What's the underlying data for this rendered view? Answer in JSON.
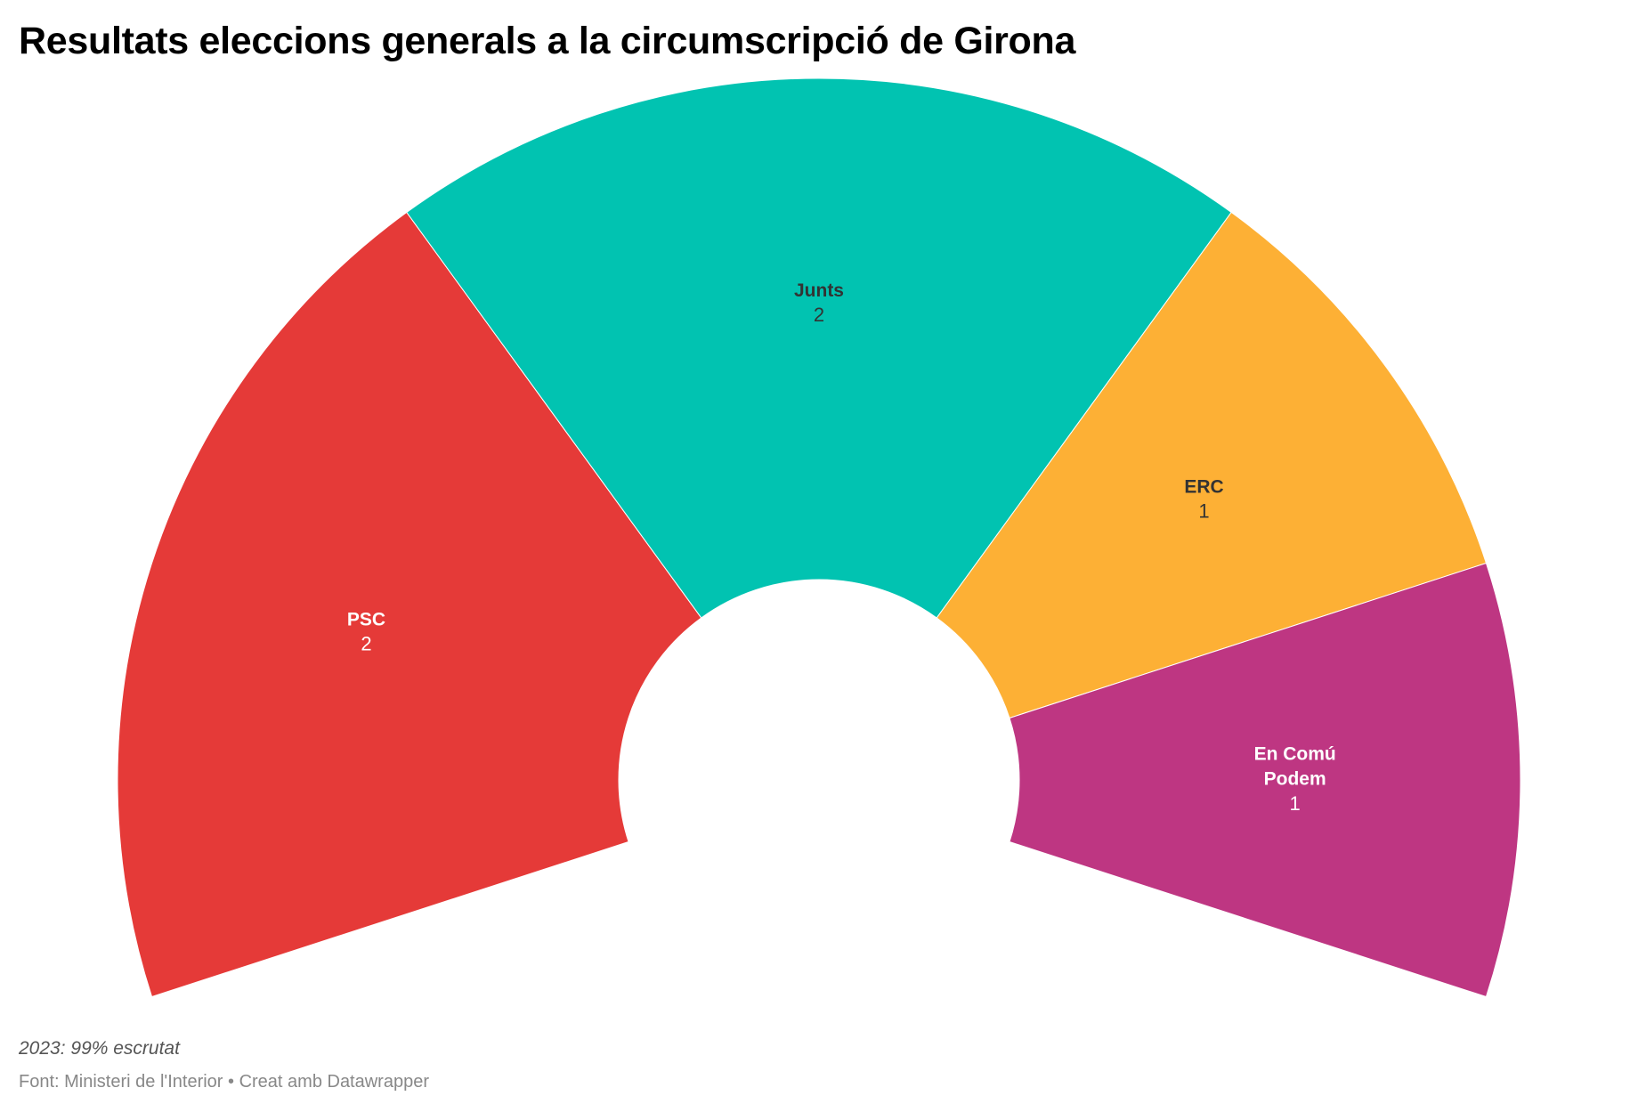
{
  "title": "Resultats eleccions generals a la circumscripció de Girona",
  "note": "2023: 99% escrutat",
  "source": "Font: Ministeri de l'Interior • Creat amb Datawrapper",
  "chart_data": {
    "type": "pie",
    "variant": "parliament-semicircle",
    "title": "Resultats eleccions generals a la circumscripció de Girona",
    "total_seats": 6,
    "series": [
      {
        "name": "PSC",
        "label_lines": [
          "PSC"
        ],
        "value": 2,
        "color": "#e53a38",
        "label_color": "#ffffff"
      },
      {
        "name": "Junts",
        "label_lines": [
          "Junts"
        ],
        "value": 2,
        "color": "#01c3b1",
        "label_color": "#333333"
      },
      {
        "name": "ERC",
        "label_lines": [
          "ERC"
        ],
        "value": 1,
        "color": "#fdb035",
        "label_color": "#333333"
      },
      {
        "name": "En Comú Podem",
        "label_lines": [
          "En Comú",
          "Podem"
        ],
        "value": 1,
        "color": "#be3682",
        "label_color": "#ffffff"
      }
    ]
  }
}
